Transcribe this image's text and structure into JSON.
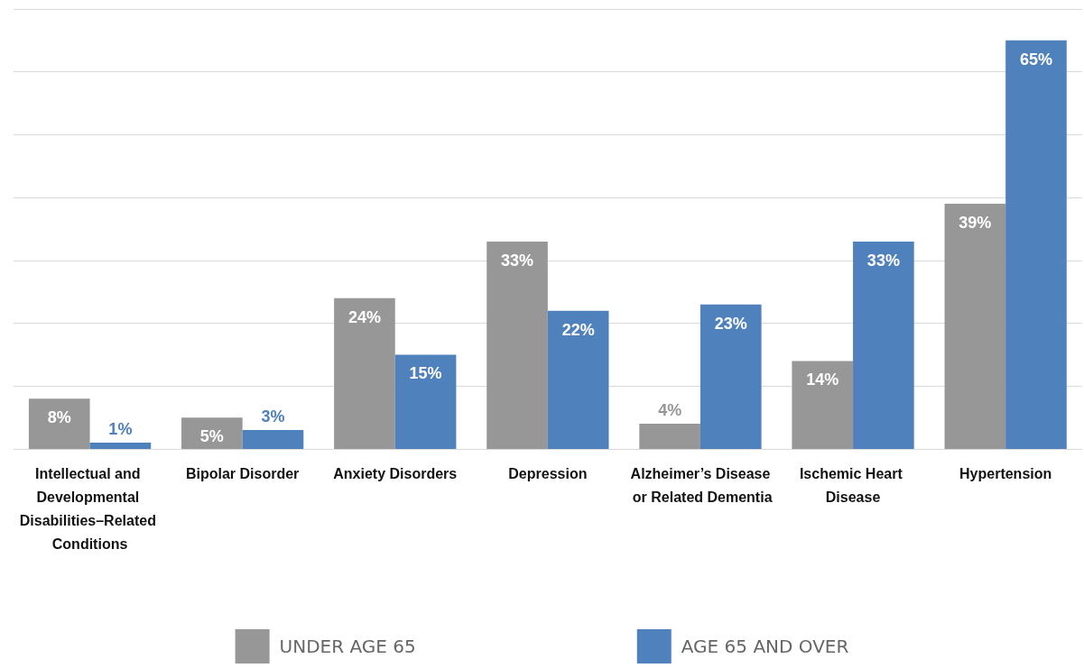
{
  "chart_data": {
    "type": "bar",
    "categories": [
      "Intellectual and Developmental Disabilities–Related Conditions",
      "Bipolar Disorder",
      "Anxiety Disorders",
      "Depression",
      "Alzheimer’s Disease or Related Dementia",
      "Ischemic Heart Disease",
      "Hypertension"
    ],
    "series": [
      {
        "name": "UNDER AGE 65",
        "color": "#979797",
        "values": [
          8,
          5,
          24,
          33,
          4,
          14,
          39
        ],
        "value_labels": [
          "8%",
          "5%",
          "24%",
          "33%",
          "4%",
          "14%",
          "39%"
        ]
      },
      {
        "name": "AGE 65 AND OVER",
        "color": "#4f81bd",
        "values": [
          1,
          3,
          15,
          22,
          23,
          33,
          65
        ],
        "value_labels": [
          "1%",
          "3%",
          "15%",
          "22%",
          "23%",
          "33%",
          "65%"
        ]
      }
    ],
    "tick_labels": "x",
    "grid": "y",
    "legend": "bottom"
  }
}
